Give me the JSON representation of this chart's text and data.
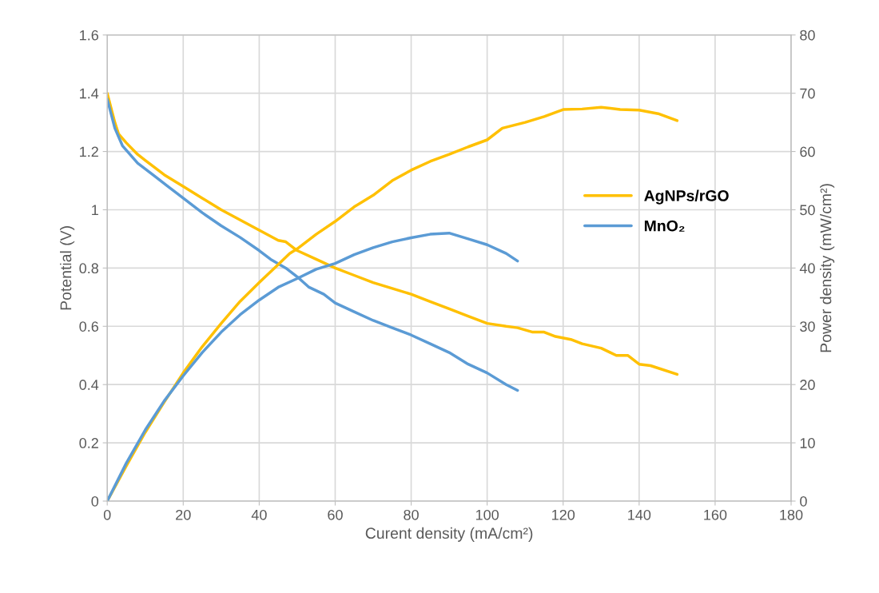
{
  "chart_data": {
    "type": "line",
    "xlabel": "Curent density (mA/cm²)",
    "ylabel": "Potential (V)",
    "y2label": "Power density (mW/cm²)",
    "xlim": [
      0,
      180
    ],
    "xticks": [
      0,
      20,
      40,
      60,
      80,
      100,
      120,
      140,
      160,
      180
    ],
    "ylim": [
      0,
      1.6
    ],
    "yticks": [
      0,
      0.2,
      0.4,
      0.6,
      0.8,
      1,
      1.2,
      1.4,
      1.6
    ],
    "y2lim": [
      0,
      80
    ],
    "y2ticks": [
      0,
      10,
      20,
      30,
      40,
      50,
      60,
      70,
      80
    ],
    "grid": true,
    "legend": "right",
    "marker": "none",
    "line_style": "solid",
    "series": [
      {
        "name": "AgNPs/rGO",
        "color": "#ffc000",
        "x": [
          0,
          2,
          3,
          5,
          8,
          10,
          15,
          20,
          25,
          30,
          35,
          40,
          45,
          47,
          50,
          55,
          60,
          65,
          70,
          75,
          80,
          85,
          90,
          95,
          100,
          105,
          108,
          112,
          115,
          118,
          122,
          125,
          130,
          134,
          137,
          140,
          143,
          150
        ],
        "values": [
          1.4,
          1.3,
          1.26,
          1.23,
          1.19,
          1.17,
          1.12,
          1.08,
          1.04,
          1.0,
          0.965,
          0.93,
          0.895,
          0.89,
          0.86,
          0.83,
          0.8,
          0.775,
          0.75,
          0.73,
          0.71,
          0.685,
          0.66,
          0.635,
          0.61,
          0.6,
          0.595,
          0.58,
          0.58,
          0.565,
          0.555,
          0.54,
          0.525,
          0.5,
          0.5,
          0.47,
          0.465,
          0.435
        ]
      },
      {
        "name": "MnO₂",
        "color": "#5b9bd5",
        "x": [
          0,
          2,
          4,
          8,
          12,
          16,
          20,
          25,
          30,
          35,
          40,
          43,
          47,
          50,
          53,
          57,
          60,
          65,
          70,
          75,
          80,
          85,
          90,
          95,
          100,
          105,
          108
        ],
        "values": [
          1.38,
          1.28,
          1.22,
          1.16,
          1.12,
          1.08,
          1.04,
          0.99,
          0.945,
          0.905,
          0.86,
          0.83,
          0.8,
          0.77,
          0.735,
          0.71,
          0.68,
          0.65,
          0.62,
          0.595,
          0.57,
          0.54,
          0.51,
          0.47,
          0.44,
          0.4,
          0.38
        ]
      },
      {
        "color": "#ffc000",
        "axis": "y2",
        "x": [
          0,
          5,
          10,
          15,
          20,
          25,
          30,
          35,
          40,
          45,
          48,
          50,
          55,
          60,
          65,
          70,
          75,
          80,
          85,
          90,
          95,
          100,
          104,
          110,
          115,
          120,
          125,
          130,
          135,
          140,
          145,
          150
        ],
        "values": [
          0,
          6,
          11.8,
          17,
          22,
          26.5,
          30.5,
          34.3,
          37.5,
          40.6,
          42.5,
          43.3,
          45.8,
          48,
          50.5,
          52.5,
          55,
          56.8,
          58.3,
          59.5,
          60.8,
          62,
          64,
          65,
          66,
          67.2,
          67.3,
          67.6,
          67.2,
          67.1,
          66.5,
          65.3
        ]
      },
      {
        "color": "#5b9bd5",
        "axis": "y2",
        "x": [
          0,
          5,
          10,
          15,
          20,
          25,
          30,
          35,
          40,
          45,
          50,
          55,
          60,
          65,
          70,
          75,
          80,
          85,
          90,
          95,
          100,
          105,
          108
        ],
        "values": [
          0,
          6.5,
          12.2,
          17.2,
          21.5,
          25.5,
          29,
          32,
          34.5,
          36.7,
          38.2,
          39.8,
          40.8,
          42.3,
          43.5,
          44.5,
          45.2,
          45.8,
          46,
          45,
          44,
          42.5,
          41.2
        ]
      }
    ]
  }
}
